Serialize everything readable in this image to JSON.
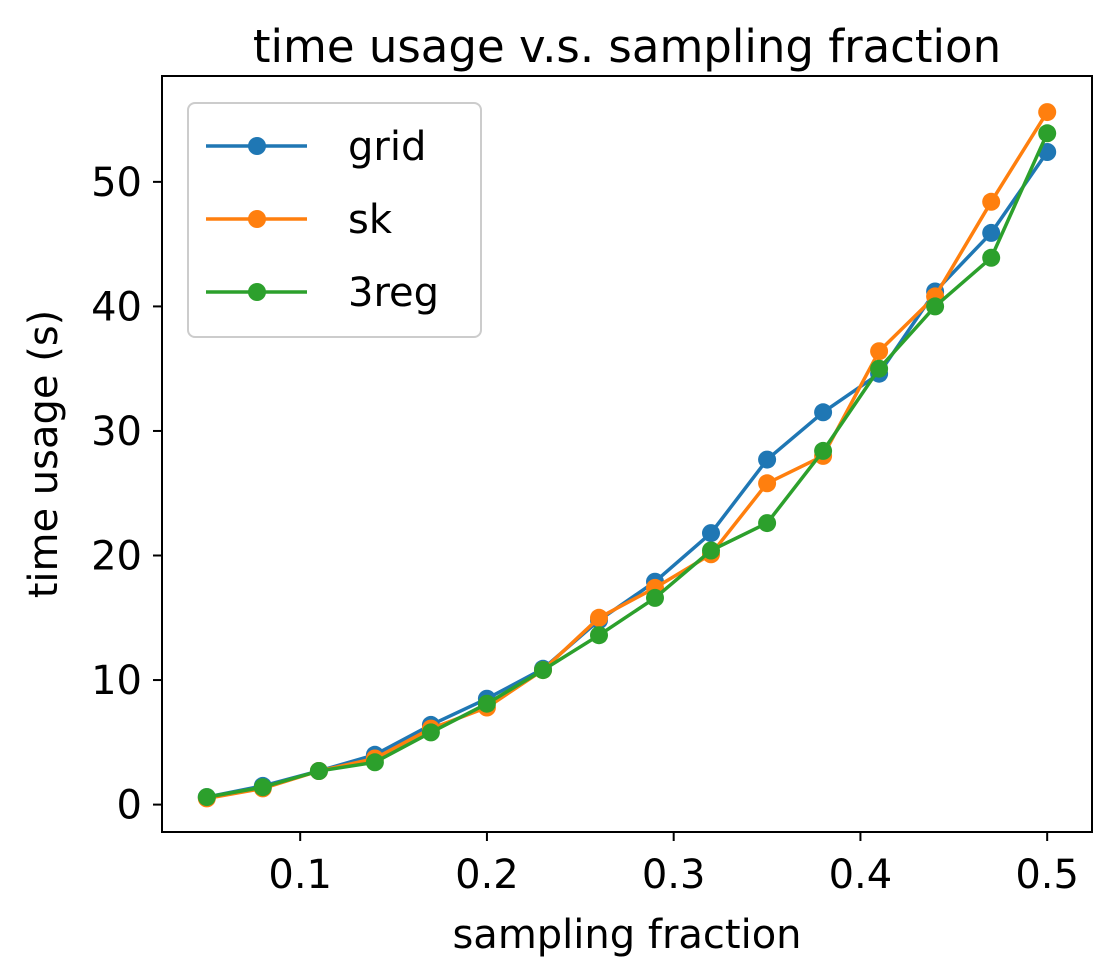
{
  "chart_data": {
    "type": "line",
    "title": "time usage v.s. sampling fraction",
    "xlabel": "sampling fraction",
    "ylabel": "time usage (s)",
    "xlim": [
      0.026,
      0.524
    ],
    "ylim": [
      -2.2,
      58.5
    ],
    "xticks": [
      0.1,
      0.2,
      0.3,
      0.4,
      0.5
    ],
    "xtick_labels": [
      "0.1",
      "0.2",
      "0.3",
      "0.4",
      "0.5"
    ],
    "yticks": [
      0,
      10,
      20,
      30,
      40,
      50
    ],
    "ytick_labels": [
      "0",
      "10",
      "20",
      "30",
      "40",
      "50"
    ],
    "grid": false,
    "legend": "top-left",
    "x": [
      0.05,
      0.08,
      0.11,
      0.14,
      0.17,
      0.2,
      0.23,
      0.26,
      0.29,
      0.32,
      0.35,
      0.38,
      0.41,
      0.44,
      0.47,
      0.5
    ],
    "series": [
      {
        "name": "grid",
        "color": "#1f77b4",
        "values": [
          0.6,
          1.5,
          2.7,
          4.0,
          6.4,
          8.5,
          10.9,
          14.8,
          17.9,
          21.8,
          27.7,
          31.5,
          34.6,
          41.2,
          45.9,
          52.4
        ]
      },
      {
        "name": "sk",
        "color": "#ff7f0e",
        "values": [
          0.5,
          1.3,
          2.7,
          3.7,
          6.1,
          7.8,
          10.8,
          15.0,
          17.4,
          20.1,
          25.8,
          28.0,
          36.4,
          40.8,
          48.4,
          55.6
        ]
      },
      {
        "name": "3reg",
        "color": "#2ca02c",
        "values": [
          0.6,
          1.4,
          2.7,
          3.4,
          5.8,
          8.1,
          10.8,
          13.6,
          16.6,
          20.4,
          22.6,
          28.4,
          35.0,
          40.0,
          43.9,
          53.9
        ]
      }
    ]
  }
}
